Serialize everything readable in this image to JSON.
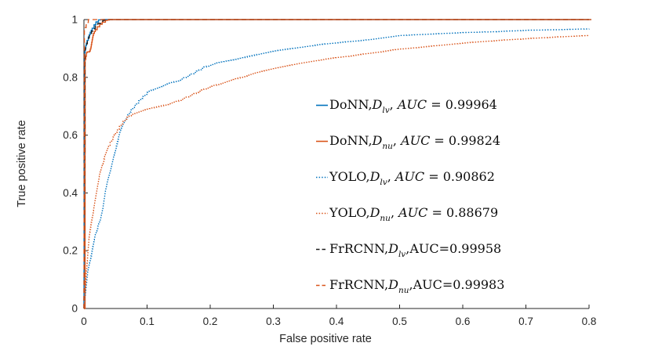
{
  "chart_data": {
    "type": "line",
    "title": "",
    "xlabel": "False positive rate",
    "ylabel": "True positive rate",
    "xlim": [
      0,
      0.8
    ],
    "ylim": [
      0,
      1
    ],
    "grid": false,
    "legend_position": "middle-right, no border box",
    "x_ticks": [
      0,
      0.1,
      0.2,
      0.3,
      0.4,
      0.5,
      0.6,
      0.7,
      0.8
    ],
    "x_tick_labels": [
      "0",
      "0.1",
      "0.2",
      "0.3",
      "0.4",
      "0.5",
      "0.6",
      "0.7",
      "0.8"
    ],
    "y_ticks": [
      0,
      0.2,
      0.4,
      0.6,
      0.8,
      1
    ],
    "y_tick_labels": [
      "0",
      "0.2",
      "0.4",
      "0.6",
      "0.8",
      "1"
    ],
    "axis_color": "#262626",
    "series": [
      {
        "name": "DoNN-Dlv",
        "model": "DoNN",
        "sub": "lv",
        "after_sub": ", ",
        "auc_label": "AUC",
        "auc_italic": true,
        "auc_value": " = 0.99964",
        "auc": 0.99964,
        "color": "#0072bd",
        "line_style": "solid",
        "points": [
          [
            0,
            0
          ],
          [
            0.0012,
            0.885
          ],
          [
            0.003,
            0.91
          ],
          [
            0.005,
            0.928
          ],
          [
            0.007,
            0.94
          ],
          [
            0.01,
            0.956
          ],
          [
            0.013,
            0.97
          ],
          [
            0.016,
            0.982
          ],
          [
            0.019,
            0.992
          ],
          [
            0.023,
            0.999
          ],
          [
            0.03,
            1
          ],
          [
            0.8,
            1
          ]
        ]
      },
      {
        "name": "DoNN-Dnu",
        "model": "DoNN",
        "sub": "nu",
        "after_sub": ", ",
        "auc_label": "AUC",
        "auc_italic": true,
        "auc_value": " = 0.99824",
        "auc": 0.99824,
        "color": "#d95319",
        "line_style": "solid",
        "points": [
          [
            0,
            0
          ],
          [
            0.0018,
            0
          ],
          [
            0.002,
            0.862
          ],
          [
            0.003,
            0.873
          ],
          [
            0.004,
            0.885
          ],
          [
            0.005,
            0.888
          ],
          [
            0.009,
            0.891
          ],
          [
            0.011,
            0.905
          ],
          [
            0.013,
            0.93
          ],
          [
            0.015,
            0.952
          ],
          [
            0.018,
            0.965
          ],
          [
            0.021,
            0.975
          ],
          [
            0.025,
            0.984
          ],
          [
            0.029,
            0.991
          ],
          [
            0.034,
            0.997
          ],
          [
            0.04,
            1
          ],
          [
            0.8,
            1
          ]
        ]
      },
      {
        "name": "YOLO-Dlv",
        "model": "YOLO",
        "sub": "lv",
        "after_sub": ", ",
        "auc_label": "AUC",
        "auc_italic": true,
        "auc_value": " = 0.90862",
        "auc": 0.90862,
        "color": "#0072bd",
        "line_style": "dotted",
        "points": [
          [
            0,
            0
          ],
          [
            0.003,
            0.07
          ],
          [
            0.006,
            0.13
          ],
          [
            0.009,
            0.165
          ],
          [
            0.012,
            0.19
          ],
          [
            0.015,
            0.23
          ],
          [
            0.018,
            0.26
          ],
          [
            0.022,
            0.285
          ],
          [
            0.026,
            0.31
          ],
          [
            0.03,
            0.35
          ],
          [
            0.034,
            0.41
          ],
          [
            0.038,
            0.45
          ],
          [
            0.042,
            0.48
          ],
          [
            0.047,
            0.53
          ],
          [
            0.052,
            0.57
          ],
          [
            0.057,
            0.61
          ],
          [
            0.062,
            0.64
          ],
          [
            0.067,
            0.662
          ],
          [
            0.072,
            0.68
          ],
          [
            0.08,
            0.703
          ],
          [
            0.09,
            0.727
          ],
          [
            0.1,
            0.748
          ],
          [
            0.11,
            0.76
          ],
          [
            0.12,
            0.768
          ],
          [
            0.135,
            0.78
          ],
          [
            0.15,
            0.79
          ],
          [
            0.17,
            0.812
          ],
          [
            0.19,
            0.836
          ],
          [
            0.21,
            0.85
          ],
          [
            0.24,
            0.862
          ],
          [
            0.27,
            0.878
          ],
          [
            0.3,
            0.892
          ],
          [
            0.33,
            0.9
          ],
          [
            0.37,
            0.913
          ],
          [
            0.41,
            0.922
          ],
          [
            0.45,
            0.93
          ],
          [
            0.5,
            0.945
          ],
          [
            0.55,
            0.95
          ],
          [
            0.6,
            0.955
          ],
          [
            0.65,
            0.958
          ],
          [
            0.7,
            0.963
          ],
          [
            0.75,
            0.965
          ],
          [
            0.8,
            0.968
          ]
        ]
      },
      {
        "name": "YOLO-Dnu",
        "model": "YOLO",
        "sub": "nu",
        "after_sub": ", ",
        "auc_label": "AUC",
        "auc_italic": true,
        "auc_value": " = 0.88679",
        "auc": 0.88679,
        "color": "#d95319",
        "line_style": "dotted",
        "points": [
          [
            0,
            0
          ],
          [
            0.002,
            0.06
          ],
          [
            0.004,
            0.13
          ],
          [
            0.006,
            0.19
          ],
          [
            0.008,
            0.24
          ],
          [
            0.011,
            0.29
          ],
          [
            0.014,
            0.33
          ],
          [
            0.017,
            0.37
          ],
          [
            0.021,
            0.42
          ],
          [
            0.025,
            0.465
          ],
          [
            0.029,
            0.5
          ],
          [
            0.034,
            0.535
          ],
          [
            0.039,
            0.565
          ],
          [
            0.044,
            0.585
          ],
          [
            0.05,
            0.61
          ],
          [
            0.056,
            0.63
          ],
          [
            0.062,
            0.648
          ],
          [
            0.068,
            0.662
          ],
          [
            0.075,
            0.672
          ],
          [
            0.085,
            0.68
          ],
          [
            0.1,
            0.69
          ],
          [
            0.115,
            0.698
          ],
          [
            0.13,
            0.706
          ],
          [
            0.15,
            0.72
          ],
          [
            0.17,
            0.74
          ],
          [
            0.19,
            0.76
          ],
          [
            0.21,
            0.775
          ],
          [
            0.24,
            0.795
          ],
          [
            0.27,
            0.815
          ],
          [
            0.3,
            0.83
          ],
          [
            0.34,
            0.848
          ],
          [
            0.38,
            0.863
          ],
          [
            0.42,
            0.874
          ],
          [
            0.46,
            0.886
          ],
          [
            0.5,
            0.898
          ],
          [
            0.55,
            0.908
          ],
          [
            0.6,
            0.919
          ],
          [
            0.65,
            0.927
          ],
          [
            0.7,
            0.934
          ],
          [
            0.75,
            0.94
          ],
          [
            0.8,
            0.945
          ]
        ]
      },
      {
        "name": "FrRCNN-Dlv",
        "model": "FrRCNN",
        "sub": "lv",
        "after_sub": ",",
        "auc_label": "AUC",
        "auc_italic": false,
        "auc_value": "=0.99958",
        "auc": 0.99958,
        "color": "#1a1a1a",
        "line_style": "dashed",
        "points": [
          [
            0,
            0
          ],
          [
            0.0015,
            0.897
          ],
          [
            0.004,
            0.916
          ],
          [
            0.007,
            0.936
          ],
          [
            0.01,
            0.952
          ],
          [
            0.014,
            0.968
          ],
          [
            0.018,
            0.978
          ],
          [
            0.022,
            0.987
          ],
          [
            0.027,
            0.994
          ],
          [
            0.033,
            1
          ],
          [
            0.808,
            1
          ]
        ]
      },
      {
        "name": "FrRCNN-Dnu",
        "model": "FrRCNN",
        "sub": "nu",
        "after_sub": ",",
        "auc_label": "AUC",
        "auc_italic": false,
        "auc_value": "=0.99983",
        "auc": 0.99983,
        "color": "#d95319",
        "line_style": "dashed",
        "points": [
          [
            0,
            0
          ],
          [
            0.0008,
            0.965
          ],
          [
            0.002,
            0.972
          ],
          [
            0.0035,
            0.982
          ],
          [
            0.005,
            0.99
          ],
          [
            0.007,
            1
          ],
          [
            0.808,
            1
          ]
        ]
      }
    ]
  }
}
